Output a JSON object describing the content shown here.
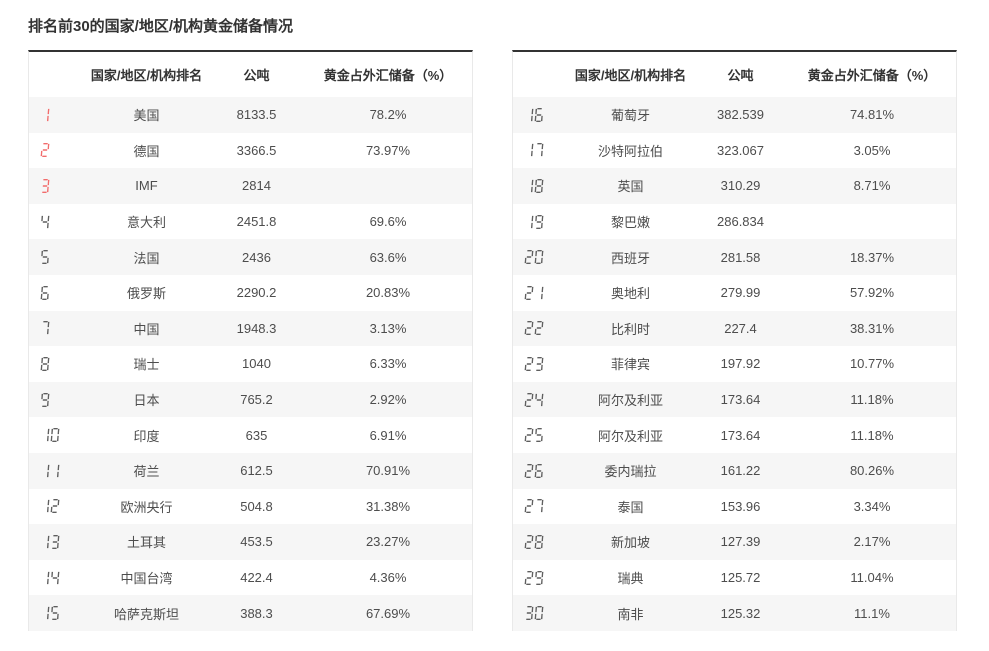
{
  "page_title": "排名前30的国家/地区/机构黄金储备情况",
  "colors": {
    "top_rank_red": "#f26c6c",
    "rank_gray": "#5f5f5f",
    "header_text": "#333333",
    "body_text": "#4d4d4d",
    "alt_row_bg": "#f6f6f6",
    "table_top_border": "#333333",
    "table_side_border": "#e9e9e9"
  },
  "table_headers": {
    "rank": "",
    "name": "国家/地区/机构排名",
    "tonnes": "公吨",
    "pct": "黄金占外汇储备（%）"
  },
  "chart_data": {
    "type": "table",
    "title": "排名前30的国家/地区/机构黄金储备情况",
    "columns": [
      "排名",
      "国家/地区/机构",
      "公吨",
      "黄金占外汇储备（%）"
    ],
    "tables": [
      {
        "rows": [
          [
            1,
            "美国",
            "8133.5",
            "78.2%"
          ],
          [
            2,
            "德国",
            "3366.5",
            "73.97%"
          ],
          [
            3,
            "IMF",
            "2814",
            ""
          ],
          [
            4,
            "意大利",
            "2451.8",
            "69.6%"
          ],
          [
            5,
            "法国",
            "2436",
            "63.6%"
          ],
          [
            6,
            "俄罗斯",
            "2290.2",
            "20.83%"
          ],
          [
            7,
            "中国",
            "1948.3",
            "3.13%"
          ],
          [
            8,
            "瑞士",
            "1040",
            "6.33%"
          ],
          [
            9,
            "日本",
            "765.2",
            "2.92%"
          ],
          [
            10,
            "印度",
            "635",
            "6.91%"
          ],
          [
            11,
            "荷兰",
            "612.5",
            "70.91%"
          ],
          [
            12,
            "欧洲央行",
            "504.8",
            "31.38%"
          ],
          [
            13,
            "土耳其",
            "453.5",
            "23.27%"
          ],
          [
            14,
            "中国台湾",
            "422.4",
            "4.36%"
          ],
          [
            15,
            "哈萨克斯坦",
            "388.3",
            "67.69%"
          ]
        ]
      },
      {
        "rows": [
          [
            16,
            "葡萄牙",
            "382.539",
            "74.81%"
          ],
          [
            17,
            "沙特阿拉伯",
            "323.067",
            "3.05%"
          ],
          [
            18,
            "英国",
            "310.29",
            "8.71%"
          ],
          [
            19,
            "黎巴嫩",
            "286.834",
            ""
          ],
          [
            20,
            "西班牙",
            "281.58",
            "18.37%"
          ],
          [
            21,
            "奥地利",
            "279.99",
            "57.92%"
          ],
          [
            22,
            "比利时",
            "227.4",
            "38.31%"
          ],
          [
            23,
            "菲律宾",
            "197.92",
            "10.77%"
          ],
          [
            24,
            "阿尔及利亚",
            "173.64",
            "11.18%"
          ],
          [
            25,
            "阿尔及利亚",
            "173.64",
            "11.18%"
          ],
          [
            26,
            "委内瑞拉",
            "161.22",
            "80.26%"
          ],
          [
            27,
            "泰国",
            "153.96",
            "3.34%"
          ],
          [
            28,
            "新加坡",
            "127.39",
            "2.17%"
          ],
          [
            29,
            "瑞典",
            "125.72",
            "11.04%"
          ],
          [
            30,
            "南非",
            "125.32",
            "11.1%"
          ]
        ]
      }
    ]
  }
}
